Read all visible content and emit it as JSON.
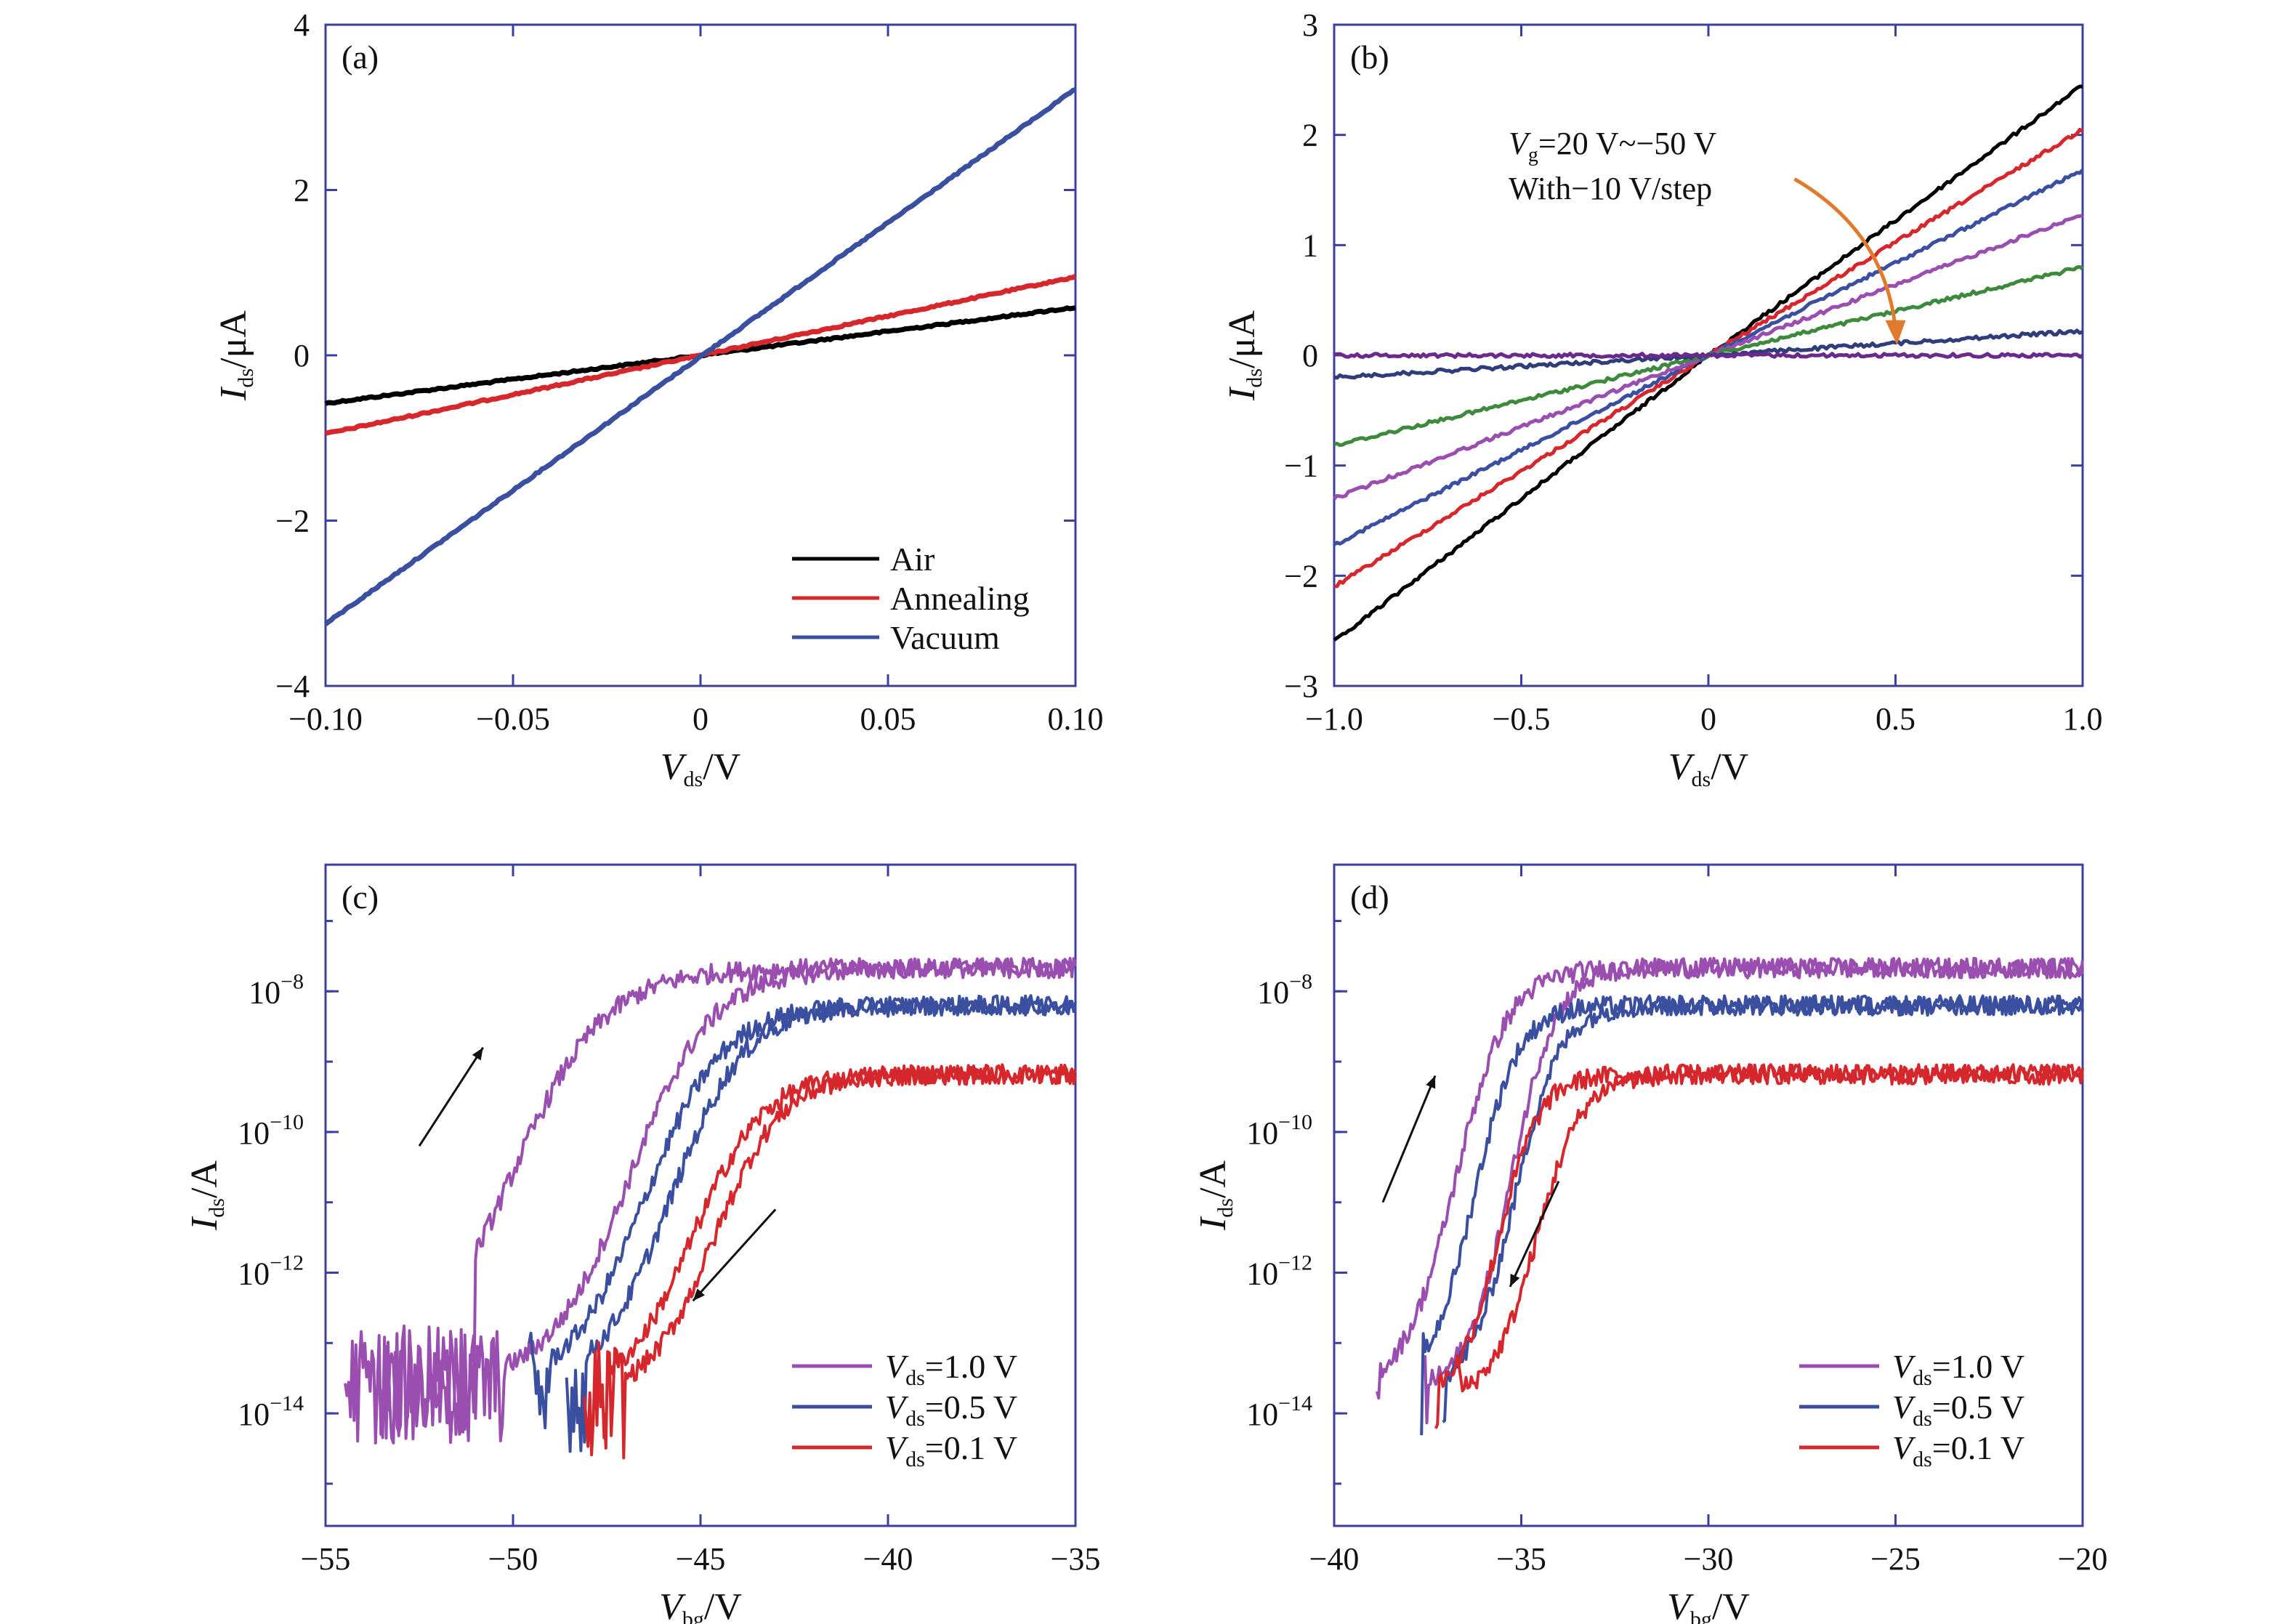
{
  "figure": {
    "background": "#ffffff",
    "axis_color": "#3a3fa0"
  },
  "chart_data": [
    {
      "id": "a",
      "type": "line",
      "panel_label": "(a)",
      "xlim": [
        -0.1,
        0.1
      ],
      "ylim": [
        -4,
        4
      ],
      "xticks": [
        {
          "v": -0.1,
          "label": "−0.10"
        },
        {
          "v": -0.05,
          "label": "−0.05"
        },
        {
          "v": 0,
          "label": "0"
        },
        {
          "v": 0.05,
          "label": "0.05"
        },
        {
          "v": 0.1,
          "label": "0.10"
        }
      ],
      "yticks": [
        {
          "v": -4,
          "label": "−4"
        },
        {
          "v": -2,
          "label": "−2"
        },
        {
          "v": 0,
          "label": "0"
        },
        {
          "v": 2,
          "label": "2"
        },
        {
          "v": 4,
          "label": "4"
        }
      ],
      "xlabel": {
        "main": "V",
        "sub": "ds",
        "unit": "/V"
      },
      "ylabel": {
        "main": "I",
        "sub": "ds",
        "unit": "/μA"
      },
      "legend_position": "bottom-right",
      "series": [
        {
          "name": "Air",
          "color": "#000000",
          "x": [
            -0.1,
            0.1
          ],
          "y": [
            -0.58,
            0.58
          ]
        },
        {
          "name": "Annealing",
          "color": "#d6282c",
          "x": [
            -0.1,
            0.1
          ],
          "y": [
            -0.95,
            0.95
          ]
        },
        {
          "name": "Vacuum",
          "color": "#3b4fa0",
          "x": [
            -0.1,
            0.1
          ],
          "y": [
            -3.25,
            3.22
          ]
        }
      ]
    },
    {
      "id": "b",
      "type": "line",
      "panel_label": "(b)",
      "xlim": [
        -1.0,
        1.0
      ],
      "ylim": [
        -3,
        3
      ],
      "xticks": [
        {
          "v": -1.0,
          "label": "−1.0"
        },
        {
          "v": -0.5,
          "label": "−0.5"
        },
        {
          "v": 0,
          "label": "0"
        },
        {
          "v": 0.5,
          "label": "0.5"
        },
        {
          "v": 1.0,
          "label": "1.0"
        }
      ],
      "yticks": [
        {
          "v": -3,
          "label": "−3"
        },
        {
          "v": -2,
          "label": "−2"
        },
        {
          "v": -1,
          "label": "−1"
        },
        {
          "v": 0,
          "label": "0"
        },
        {
          "v": 1,
          "label": "1"
        },
        {
          "v": 2,
          "label": "2"
        },
        {
          "v": 3,
          "label": "3"
        }
      ],
      "xlabel": {
        "main": "V",
        "sub": "ds",
        "unit": "/V"
      },
      "ylabel": {
        "main": "I",
        "sub": "ds",
        "unit": "/μA"
      },
      "annotation": {
        "line1_main": "V",
        "line1_sub": "g",
        "line1_rest": "=20 V~−50 V",
        "line2": "With−10 V/step",
        "arrow_color": "#e07b2e",
        "arrow_from": [
          0.23,
          1.6
        ],
        "arrow_to": [
          0.5,
          0.12
        ]
      },
      "series": [
        {
          "color": "#000000",
          "x": [
            -1.0,
            0.0,
            1.0
          ],
          "y": [
            -2.6,
            0.0,
            2.45
          ]
        },
        {
          "color": "#d6282c",
          "x": [
            -1.0,
            0.0,
            1.0
          ],
          "y": [
            -2.1,
            0.0,
            2.05
          ]
        },
        {
          "color": "#3b4fa0",
          "x": [
            -1.0,
            0.0,
            1.0
          ],
          "y": [
            -1.72,
            0.0,
            1.68
          ]
        },
        {
          "color": "#9a4fb0",
          "x": [
            -1.0,
            0.0,
            1.0
          ],
          "y": [
            -1.3,
            0.0,
            1.28
          ]
        },
        {
          "color": "#3d8a3d",
          "x": [
            -1.0,
            0.0,
            1.0
          ],
          "y": [
            -0.82,
            0.0,
            0.8
          ]
        },
        {
          "color": "#2f3d7a",
          "x": [
            -1.0,
            0.0,
            1.0
          ],
          "y": [
            -0.2,
            0.0,
            0.22
          ]
        },
        {
          "color": "#6a2a8c",
          "x": [
            -1.0,
            0.0,
            1.0
          ],
          "y": [
            0.0,
            0.0,
            0.0
          ]
        }
      ]
    },
    {
      "id": "c",
      "type": "line",
      "log_y": true,
      "panel_label": "(c)",
      "xlim": [
        -55,
        -35
      ],
      "ylim_log10": [
        -15.6,
        -6.2
      ],
      "xticks": [
        {
          "v": -55,
          "label": "−55"
        },
        {
          "v": -50,
          "label": "−50"
        },
        {
          "v": -45,
          "label": "−45"
        },
        {
          "v": -40,
          "label": "−40"
        },
        {
          "v": -35,
          "label": "−35"
        }
      ],
      "yticks_log10": [
        -14,
        -12,
        -10,
        -8
      ],
      "ytick_labels": [
        {
          "base": "10",
          "exp": "−14"
        },
        {
          "base": "10",
          "exp": "−12"
        },
        {
          "base": "10",
          "exp": "−10"
        },
        {
          "base": "10",
          "exp": "−8"
        }
      ],
      "xlabel": {
        "main": "V",
        "sub": "bg",
        "unit": "/V"
      },
      "ylabel": {
        "main": "I",
        "sub": "ds",
        "unit": "/A"
      },
      "legend_position": "bottom-right",
      "legend": [
        {
          "main": "V",
          "sub": "ds",
          "rest": "=1.0 V",
          "color": "#9a4fb0"
        },
        {
          "main": "V",
          "sub": "ds",
          "rest": "=0.5 V",
          "color": "#3b4fa0"
        },
        {
          "main": "V",
          "sub": "ds",
          "rest": "=0.1 V",
          "color": "#d6282c"
        }
      ],
      "direction_arrows": [
        {
          "from": [
            -52.5,
            -10.2
          ],
          "to": [
            -50.8,
            -8.8
          ]
        },
        {
          "from": [
            -43.0,
            -11.1
          ],
          "to": [
            -45.2,
            -12.4
          ]
        }
      ],
      "curves": [
        {
          "color": "#9a4fb0",
          "noise_until": -51.0,
          "noise_level": -13.6,
          "x0": -52.8,
          "width": 1.25,
          "top": -7.67
        },
        {
          "color": "#9a4fb0",
          "noise_until": -50.2,
          "noise_level": -13.6,
          "x0": -49.3,
          "width": 1.1,
          "top": -7.67
        },
        {
          "color": "#3b4fa0",
          "noise_until": -49.0,
          "noise_level": -13.7,
          "x0": -48.8,
          "width": 1.05,
          "top": -8.2
        },
        {
          "color": "#3b4fa0",
          "noise_until": -48.0,
          "noise_level": -13.7,
          "x0": -48.0,
          "width": 1.0,
          "top": -8.2
        },
        {
          "color": "#d6282c",
          "noise_until": -47.5,
          "noise_level": -13.8,
          "x0": -47.3,
          "width": 0.95,
          "top": -9.18
        },
        {
          "color": "#d6282c",
          "noise_until": -47.0,
          "noise_level": -13.8,
          "x0": -46.6,
          "width": 0.9,
          "top": -9.18
        }
      ]
    },
    {
      "id": "d",
      "type": "line",
      "log_y": true,
      "panel_label": "(d)",
      "xlim": [
        -40,
        -20
      ],
      "ylim_log10": [
        -15.6,
        -6.2
      ],
      "xticks": [
        {
          "v": -40,
          "label": "−40"
        },
        {
          "v": -35,
          "label": "−35"
        },
        {
          "v": -30,
          "label": "−30"
        },
        {
          "v": -25,
          "label": "−25"
        },
        {
          "v": -20,
          "label": "−20"
        }
      ],
      "yticks_log10": [
        -14,
        -12,
        -10,
        -8
      ],
      "ytick_labels": [
        {
          "base": "10",
          "exp": "−14"
        },
        {
          "base": "10",
          "exp": "−12"
        },
        {
          "base": "10",
          "exp": "−10"
        },
        {
          "base": "10",
          "exp": "−8"
        }
      ],
      "xlabel": {
        "main": "V",
        "sub": "bg",
        "unit": "/V"
      },
      "ylabel": {
        "main": "I",
        "sub": "ds",
        "unit": "/A"
      },
      "legend_position": "bottom-right",
      "legend": [
        {
          "main": "V",
          "sub": "ds",
          "rest": "=1.0 V",
          "color": "#9a4fb0"
        },
        {
          "main": "V",
          "sub": "ds",
          "rest": "=0.5 V",
          "color": "#3b4fa0"
        },
        {
          "main": "V",
          "sub": "ds",
          "rest": "=0.1 V",
          "color": "#d6282c"
        }
      ],
      "direction_arrows": [
        {
          "from": [
            -38.7,
            -11.0
          ],
          "to": [
            -37.3,
            -9.2
          ]
        },
        {
          "from": [
            -34.0,
            -10.7
          ],
          "to": [
            -35.3,
            -12.2
          ]
        }
      ],
      "curves": [
        {
          "color": "#9a4fb0",
          "noise_until": -38.8,
          "noise_level": -13.7,
          "x0": -38.3,
          "width": 0.7,
          "top": -7.67
        },
        {
          "color": "#9a4fb0",
          "noise_until": -37.5,
          "noise_level": -13.7,
          "x0": -36.6,
          "width": 0.6,
          "top": -7.67
        },
        {
          "color": "#3b4fa0",
          "noise_until": -37.6,
          "noise_level": -13.7,
          "x0": -37.6,
          "width": 0.6,
          "top": -8.2
        },
        {
          "color": "#3b4fa0",
          "noise_until": -37.0,
          "noise_level": -13.7,
          "x0": -36.5,
          "width": 0.6,
          "top": -8.2
        },
        {
          "color": "#d6282c",
          "noise_until": -37.2,
          "noise_level": -13.8,
          "x0": -36.8,
          "width": 0.55,
          "top": -9.18
        },
        {
          "color": "#d6282c",
          "noise_until": -36.6,
          "noise_level": -13.8,
          "x0": -35.9,
          "width": 0.6,
          "top": -9.18
        }
      ]
    }
  ]
}
